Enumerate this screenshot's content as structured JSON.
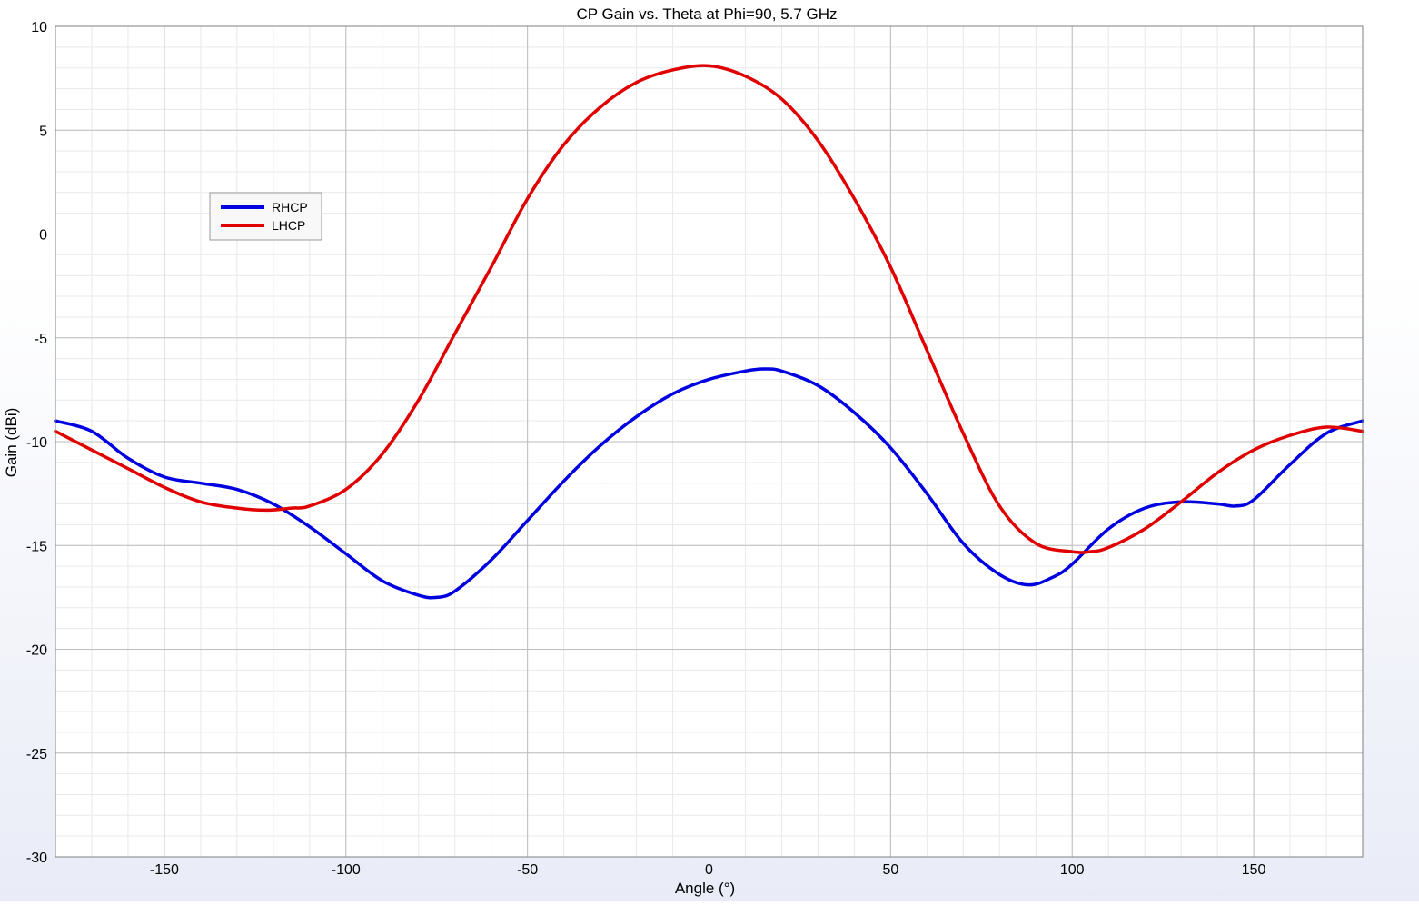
{
  "chart_data": {
    "type": "line",
    "title": "CP Gain vs. Theta at Phi=90, 5.7 GHz",
    "xlabel": "Angle (°)",
    "ylabel": "Gain (dBi)",
    "xlim": [
      -180,
      180
    ],
    "ylim": [
      -30,
      10
    ],
    "x_ticks": [
      -150,
      -100,
      -50,
      0,
      50,
      100,
      150
    ],
    "y_ticks": [
      10,
      5,
      0,
      -5,
      -10,
      -15,
      -20,
      -25,
      -30
    ],
    "grid": true,
    "minor_grid": true,
    "legend_position": "upper-left",
    "series": [
      {
        "name": "RHCP",
        "color": "#0000e0",
        "x": [
          -180,
          -170,
          -160,
          -150,
          -140,
          -130,
          -120,
          -110,
          -100,
          -90,
          -80,
          -75,
          -70,
          -60,
          -50,
          -40,
          -30,
          -20,
          -10,
          0,
          10,
          15,
          20,
          30,
          40,
          50,
          60,
          70,
          80,
          88,
          95,
          100,
          110,
          120,
          130,
          140,
          145,
          150,
          160,
          170,
          180
        ],
        "y": [
          -9.0,
          -9.5,
          -10.8,
          -11.7,
          -12.0,
          -12.3,
          -13.0,
          -14.1,
          -15.4,
          -16.7,
          -17.4,
          -17.5,
          -17.2,
          -15.7,
          -13.8,
          -11.9,
          -10.2,
          -8.8,
          -7.7,
          -7.0,
          -6.6,
          -6.5,
          -6.6,
          -7.3,
          -8.6,
          -10.3,
          -12.5,
          -14.9,
          -16.4,
          -16.9,
          -16.5,
          -15.9,
          -14.2,
          -13.2,
          -12.9,
          -13.0,
          -13.1,
          -12.8,
          -11.1,
          -9.6,
          -9.0
        ]
      },
      {
        "name": "LHCP",
        "color": "#e00000",
        "x": [
          -180,
          -170,
          -160,
          -150,
          -140,
          -130,
          -122,
          -115,
          -110,
          -100,
          -90,
          -80,
          -70,
          -60,
          -50,
          -40,
          -30,
          -20,
          -10,
          0,
          10,
          20,
          30,
          40,
          50,
          60,
          70,
          80,
          90,
          100,
          105,
          110,
          120,
          130,
          140,
          150,
          160,
          170,
          180
        ],
        "y": [
          -9.5,
          -10.4,
          -11.3,
          -12.2,
          -12.9,
          -13.2,
          -13.3,
          -13.2,
          -13.1,
          -12.3,
          -10.6,
          -8.0,
          -4.8,
          -1.6,
          1.7,
          4.3,
          6.1,
          7.3,
          7.9,
          8.1,
          7.6,
          6.5,
          4.5,
          1.7,
          -1.6,
          -5.6,
          -9.6,
          -13.1,
          -14.9,
          -15.3,
          -15.3,
          -15.1,
          -14.2,
          -12.9,
          -11.5,
          -10.4,
          -9.7,
          -9.3,
          -9.5
        ]
      }
    ]
  }
}
